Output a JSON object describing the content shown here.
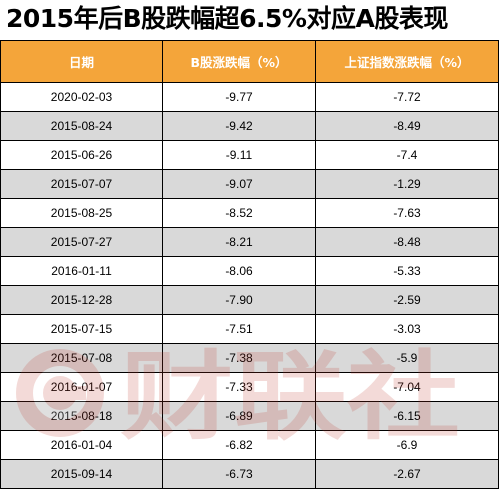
{
  "title": "2015年后B股跌幅超6.5%对应A股表现",
  "headers": [
    "日期",
    "B股涨跌幅（%）",
    "上证指数涨跌幅（%）"
  ],
  "rows": [
    {
      "date": "2020-02-03",
      "b": "-9.77",
      "a": "-7.72"
    },
    {
      "date": "2015-08-24",
      "b": "-9.42",
      "a": "-8.49"
    },
    {
      "date": "2015-06-26",
      "b": "-9.11",
      "a": "-7.4"
    },
    {
      "date": "2015-07-07",
      "b": "-9.07",
      "a": "-1.29"
    },
    {
      "date": "2015-08-25",
      "b": "-8.52",
      "a": "-7.63"
    },
    {
      "date": "2015-07-27",
      "b": "-8.21",
      "a": "-8.48"
    },
    {
      "date": "2016-01-11",
      "b": "-8.06",
      "a": "-5.33"
    },
    {
      "date": "2015-12-28",
      "b": "-7.90",
      "a": "-2.59"
    },
    {
      "date": "2015-07-15",
      "b": "-7.51",
      "a": "-3.03"
    },
    {
      "date": "2015-07-08",
      "b": "-7.38",
      "a": "-5.9"
    },
    {
      "date": "2016-01-07",
      "b": "-7.33",
      "a": "-7.04"
    },
    {
      "date": "2015-08-18",
      "b": "-6.89",
      "a": "-6.15"
    },
    {
      "date": "2016-01-04",
      "b": "-6.82",
      "a": "-6.9"
    },
    {
      "date": "2015-09-14",
      "b": "-6.73",
      "a": "-2.67"
    }
  ],
  "watermark": {
    "text": "财联社",
    "color": "#c0392b"
  }
}
